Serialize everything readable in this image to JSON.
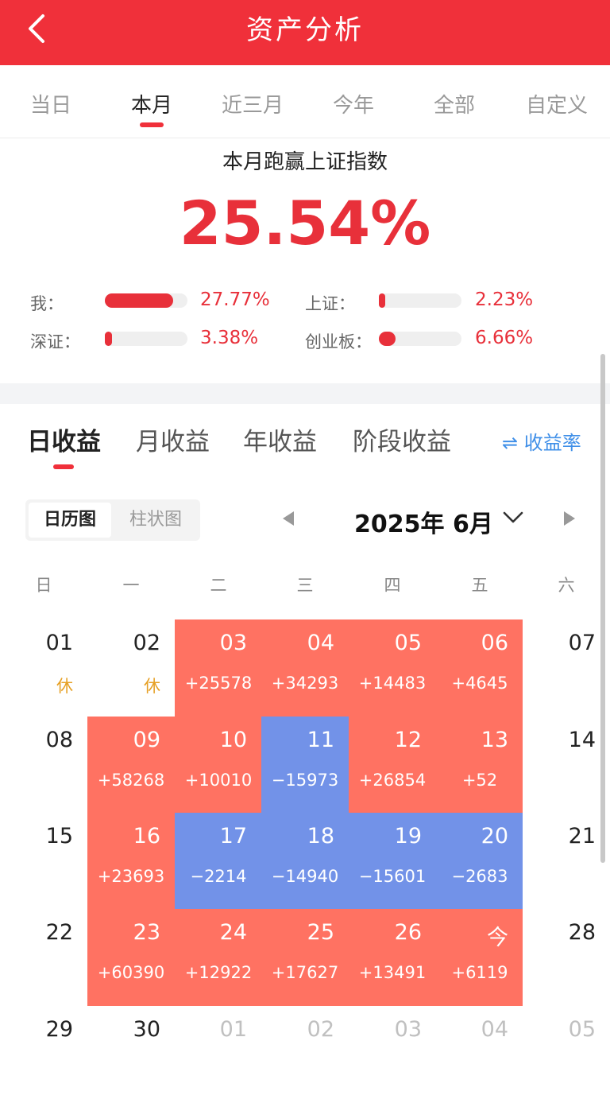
{
  "header": {
    "title": "资产分析"
  },
  "periods": [
    "当日",
    "本月",
    "近三月",
    "今年",
    "全部",
    "自定义"
  ],
  "active_period": 1,
  "summary": {
    "label": "本月跑赢上证指数",
    "value": "25.54%"
  },
  "compare": [
    {
      "label": "我：",
      "value": "27.77%",
      "fill": 0.83
    },
    {
      "label": "上证：",
      "value": "2.23%",
      "fill": 0.07
    },
    {
      "label": "深证：",
      "value": "3.38%",
      "fill": 0.09
    },
    {
      "label": "创业板：",
      "value": "6.66%",
      "fill": 0.2
    }
  ],
  "profit_tabs": [
    "日收益",
    "月收益",
    "年收益",
    "阶段收益"
  ],
  "rate_toggle": "⇌ 收益率",
  "view_toggle": [
    "日历图",
    "柱状图"
  ],
  "month": "2025年 6月",
  "weekdays": [
    "日",
    "一",
    "二",
    "三",
    "四",
    "五",
    "六"
  ],
  "calendar": [
    [
      {
        "d": "01",
        "v": "休",
        "t": "rest"
      },
      {
        "d": "02",
        "v": "休",
        "t": "rest"
      },
      {
        "d": "03",
        "v": "+25578",
        "t": "up"
      },
      {
        "d": "04",
        "v": "+34293",
        "t": "up"
      },
      {
        "d": "05",
        "v": "+14483",
        "t": "up"
      },
      {
        "d": "06",
        "v": "+4645",
        "t": "up"
      },
      {
        "d": "07",
        "v": "",
        "t": "plain"
      }
    ],
    [
      {
        "d": "08",
        "v": "",
        "t": "plain"
      },
      {
        "d": "09",
        "v": "+58268",
        "t": "up"
      },
      {
        "d": "10",
        "v": "+10010",
        "t": "up"
      },
      {
        "d": "11",
        "v": "−15973",
        "t": "down"
      },
      {
        "d": "12",
        "v": "+26854",
        "t": "up"
      },
      {
        "d": "13",
        "v": "+52",
        "t": "up"
      },
      {
        "d": "14",
        "v": "",
        "t": "plain"
      }
    ],
    [
      {
        "d": "15",
        "v": "",
        "t": "plain"
      },
      {
        "d": "16",
        "v": "+23693",
        "t": "up"
      },
      {
        "d": "17",
        "v": "−2214",
        "t": "down"
      },
      {
        "d": "18",
        "v": "−14940",
        "t": "down"
      },
      {
        "d": "19",
        "v": "−15601",
        "t": "down"
      },
      {
        "d": "20",
        "v": "−2683",
        "t": "down"
      },
      {
        "d": "21",
        "v": "",
        "t": "plain"
      }
    ],
    [
      {
        "d": "22",
        "v": "",
        "t": "plain"
      },
      {
        "d": "23",
        "v": "+60390",
        "t": "up"
      },
      {
        "d": "24",
        "v": "+12922",
        "t": "up"
      },
      {
        "d": "25",
        "v": "+17627",
        "t": "up"
      },
      {
        "d": "26",
        "v": "+13491",
        "t": "up"
      },
      {
        "d": "今",
        "v": "+6119",
        "t": "up"
      },
      {
        "d": "28",
        "v": "",
        "t": "plain"
      }
    ],
    [
      {
        "d": "29",
        "v": "",
        "t": "plain"
      },
      {
        "d": "30",
        "v": "",
        "t": "plain"
      },
      {
        "d": "01",
        "v": "",
        "t": "other"
      },
      {
        "d": "02",
        "v": "",
        "t": "other"
      },
      {
        "d": "03",
        "v": "",
        "t": "other"
      },
      {
        "d": "04",
        "v": "",
        "t": "other"
      },
      {
        "d": "05",
        "v": "",
        "t": "other"
      }
    ]
  ],
  "colors": {
    "brand": "#f0303a",
    "gain": "#ff7262",
    "loss": "#7292e8",
    "link": "#3f8fe8"
  }
}
